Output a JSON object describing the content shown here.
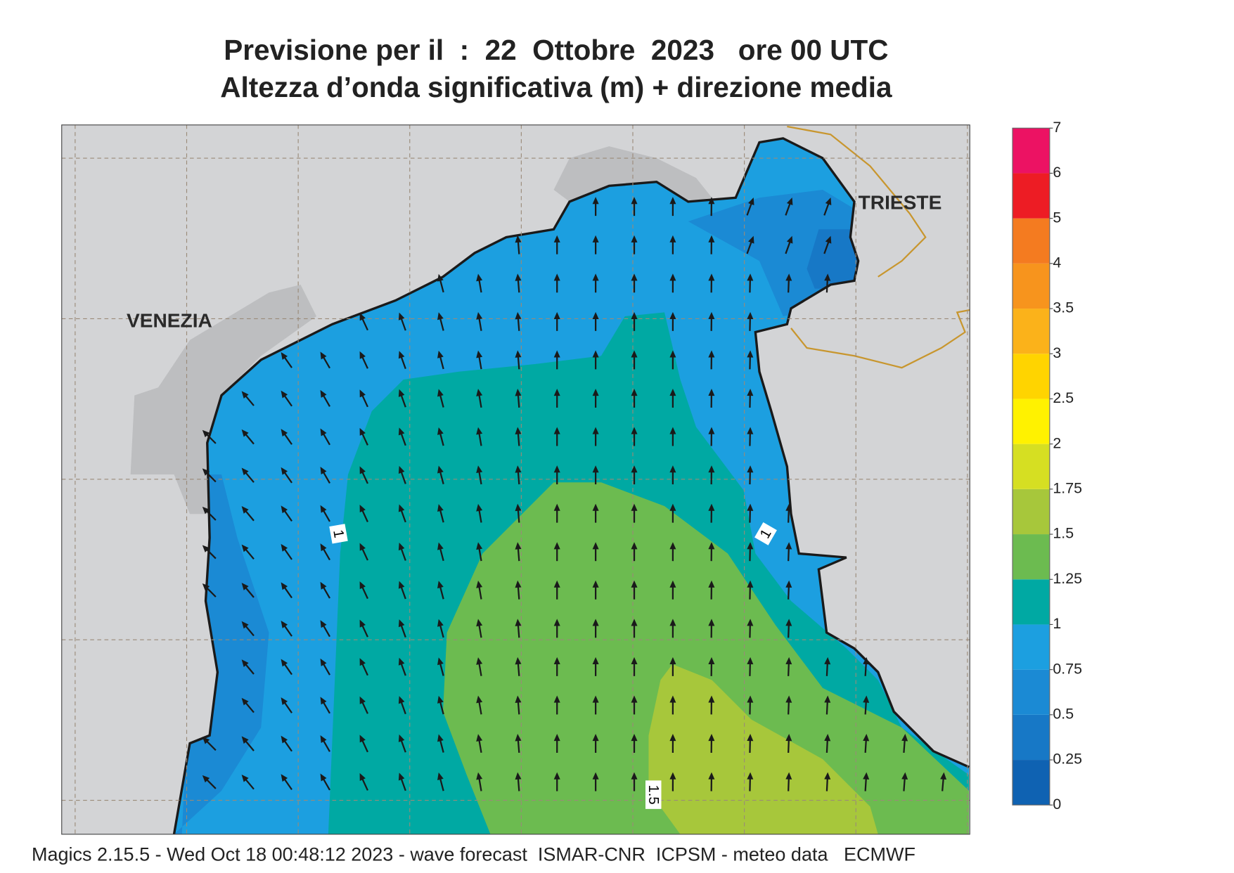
{
  "header": {
    "title": "Previsione per il  :  22  Ottobre  2023   ore 00 UTC",
    "subtitle": "Altezza d’onda significativa (m) + direzione media"
  },
  "map": {
    "places": [
      "VENEZIA",
      "TRIESTE"
    ],
    "contour_labels": [
      "1",
      "1",
      "1.5"
    ]
  },
  "colorbar": {
    "levels": [
      0,
      0.25,
      0.5,
      0.75,
      1,
      1.25,
      1.5,
      1.75,
      2,
      2.5,
      3,
      3.5,
      4,
      5,
      6,
      7
    ],
    "colors": [
      "#0f62b2",
      "#1778c6",
      "#1b8ad4",
      "#1c9fe0",
      "#00a9a3",
      "#6cbb50",
      "#a7c73b",
      "#d6df22",
      "#fff200",
      "#ffd400",
      "#fbb21a",
      "#f7941d",
      "#f47b20",
      "#ed1c24",
      "#ec1263"
    ]
  },
  "footer": "Magics 2.15.5 - Wed Oct 18 00:48:12 2023 - wave forecast  ISMAR-CNR  ICPSM - meteo data   ECMWF"
}
